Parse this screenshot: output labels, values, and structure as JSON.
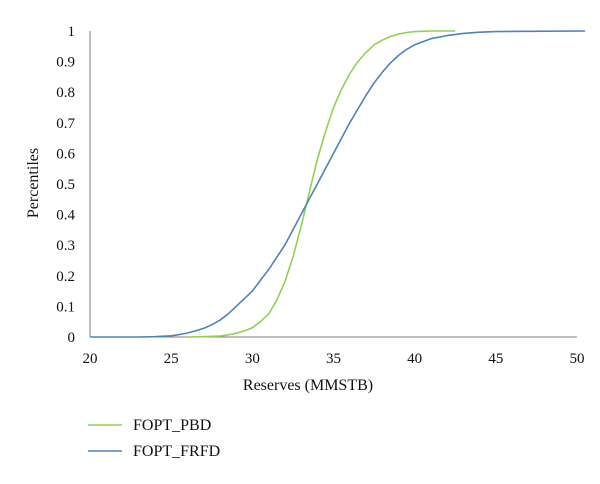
{
  "chart_data": {
    "type": "line",
    "xlabel": "Reserves (MMSTB)",
    "ylabel": "Percentiles",
    "xlim": [
      20,
      50
    ],
    "ylim": [
      0,
      1
    ],
    "x_ticks": [
      "20",
      "25",
      "30",
      "35",
      "40",
      "45",
      "50"
    ],
    "y_ticks": [
      "0",
      "0.1",
      "0.2",
      "0.3",
      "0.4",
      "0.5",
      "0.6",
      "0.7",
      "0.8",
      "0.9",
      "1"
    ],
    "grid": false,
    "legend_position": "bottom-left",
    "series": [
      {
        "name": "FOPT_PBD",
        "color": "#92d050",
        "x": [
          26,
          27,
          28,
          28.5,
          29,
          29.5,
          30,
          30.5,
          31,
          31.5,
          32,
          32.5,
          33,
          33.5,
          34,
          34.5,
          35,
          35.5,
          36,
          36.5,
          37,
          37.5,
          38,
          38.5,
          39,
          39.5,
          40,
          40.5,
          41,
          42,
          42.5
        ],
        "values": [
          0,
          0.001,
          0.003,
          0.007,
          0.012,
          0.02,
          0.03,
          0.05,
          0.075,
          0.12,
          0.18,
          0.26,
          0.36,
          0.47,
          0.58,
          0.67,
          0.75,
          0.81,
          0.86,
          0.9,
          0.93,
          0.955,
          0.97,
          0.982,
          0.99,
          0.995,
          0.998,
          0.999,
          1.0,
          1.0,
          1.0
        ]
      },
      {
        "name": "FOPT_FRFD",
        "color": "#4f81bd",
        "x": [
          20,
          23,
          24,
          25,
          25.5,
          26,
          26.5,
          27,
          27.5,
          28,
          28.5,
          29,
          29.5,
          30,
          30.5,
          31,
          31.5,
          32,
          32.5,
          33,
          33.5,
          34,
          34.5,
          35,
          35.5,
          36,
          36.5,
          37,
          37.5,
          38,
          38.5,
          39,
          39.5,
          40,
          40.5,
          41,
          42,
          43,
          44,
          45,
          47,
          50.5
        ],
        "values": [
          0,
          0,
          0.001,
          0.004,
          0.008,
          0.013,
          0.02,
          0.028,
          0.04,
          0.055,
          0.075,
          0.1,
          0.125,
          0.15,
          0.185,
          0.22,
          0.26,
          0.3,
          0.35,
          0.4,
          0.45,
          0.5,
          0.55,
          0.6,
          0.65,
          0.7,
          0.745,
          0.79,
          0.83,
          0.865,
          0.895,
          0.92,
          0.94,
          0.955,
          0.965,
          0.975,
          0.985,
          0.992,
          0.996,
          0.998,
          0.999,
          1.0
        ]
      }
    ]
  }
}
